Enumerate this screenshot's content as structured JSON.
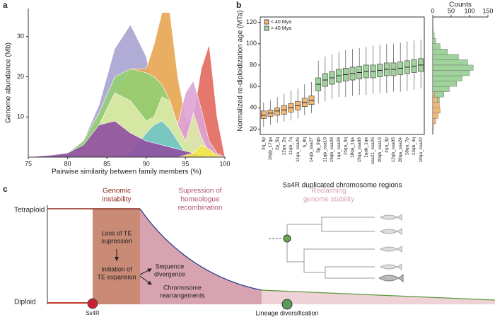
{
  "chart_data": [
    {
      "type": "area",
      "panel": "a",
      "xlabel": "Pairwise similarity between family members (%)",
      "ylabel": "Genome abundance (Mb)",
      "xlim": [
        75,
        100
      ],
      "xticks": [
        75,
        80,
        85,
        90,
        95,
        100
      ],
      "ylim": [
        0,
        37
      ],
      "yticks": [
        10,
        20,
        30
      ],
      "x": [
        75,
        78,
        80,
        82,
        84,
        86,
        88,
        90,
        91,
        92,
        93,
        94,
        95,
        96,
        97,
        98,
        99,
        100
      ],
      "series": [
        {
          "color": "#a7a3d2",
          "values": [
            0,
            0.3,
            1,
            4,
            13,
            27,
            33,
            25,
            16,
            10,
            7,
            5,
            4,
            3,
            2,
            1,
            0.3,
            0
          ]
        },
        {
          "color": "#e8a552",
          "values": [
            0,
            0,
            0.5,
            2,
            8,
            16,
            22,
            22,
            28,
            36,
            36,
            20,
            10,
            6,
            5,
            3,
            1,
            0
          ]
        },
        {
          "color": "#e2685c",
          "values": [
            0,
            0,
            0,
            0,
            0,
            0,
            0.5,
            1,
            2,
            4,
            4,
            4,
            8,
            10,
            22,
            28,
            10,
            0
          ]
        },
        {
          "color": "#dea3d6",
          "values": [
            0,
            0,
            0,
            0,
            0,
            0,
            0,
            0,
            0,
            1,
            3,
            8,
            16,
            19,
            12,
            4,
            1,
            0
          ]
        },
        {
          "color": "#93cf72",
          "values": [
            0,
            0,
            1,
            4,
            11,
            20,
            22,
            21,
            20,
            18,
            14,
            8,
            4,
            2,
            1,
            0,
            0,
            0
          ]
        },
        {
          "color": "#dde9a8",
          "values": [
            0,
            0,
            0.5,
            2,
            8,
            16,
            14,
            9,
            10,
            15,
            14,
            8,
            4,
            11,
            5,
            1,
            0,
            0
          ]
        },
        {
          "color": "#6fc3c4",
          "values": [
            0,
            0,
            0,
            0,
            0,
            0,
            1,
            6,
            8,
            9,
            7,
            4,
            1,
            0,
            0,
            0,
            0,
            0
          ]
        },
        {
          "color": "#8f4fa0",
          "values": [
            0,
            0.5,
            1,
            3,
            8,
            9,
            6,
            4,
            3.5,
            3,
            2.5,
            2,
            1.5,
            1,
            0.5,
            0,
            0,
            0
          ]
        },
        {
          "color": "#f3e54a",
          "values": [
            0,
            0,
            0,
            0,
            0,
            0,
            0,
            0,
            0,
            0,
            0,
            0,
            0.5,
            1,
            3,
            2,
            0.5,
            0
          ]
        }
      ]
    },
    {
      "type": "box",
      "panel": "b",
      "xlabel": "Ss4R duplicated chromosome regions",
      "ylabel": "Normalized re-diploidization age (MTa)",
      "ylim": [
        15,
        125
      ],
      "yticks": [
        20,
        40,
        60,
        80,
        100,
        120
      ],
      "series": [
        {
          "name": "< 40 Mya",
          "color": "#f2b777",
          "categories": [
            "3q_6p",
            "16qb_17qa",
            "2p_5q",
            "12qa_2q",
            "11qb_7q",
            "11qa_ssa26",
            "6_8q",
            "14qb_ssa27"
          ],
          "min": [
            22,
            24,
            26,
            27,
            28,
            30,
            33,
            35
          ],
          "q1": [
            30,
            32,
            33,
            34,
            36,
            38,
            41,
            43
          ],
          "median": [
            33,
            35,
            37,
            38,
            40,
            42,
            45,
            47
          ],
          "q3": [
            37,
            38,
            40,
            42,
            44,
            46,
            49,
            51
          ],
          "max": [
            45,
            47,
            50,
            53,
            56,
            58,
            62,
            64
          ]
        },
        {
          "name": "> 40 Mya",
          "color": "#9fd39b",
          "categories": [
            "5p_9qb",
            "11qb_ssa10",
            "19qb_ssa28",
            "1qa_ssa28",
            "15qa_6q",
            "18qa_1qa",
            "19qa_ssa09",
            "1qab_1qa",
            "ssa21_ssa25",
            "20qb_ssa19",
            "4qa_3p",
            "12qb_ssa05",
            "20qa_ssa24",
            "18qa_7p",
            "13qb_4q",
            "10qa_ssa22"
          ],
          "min": [
            44,
            46,
            48,
            50,
            50,
            51,
            52,
            52,
            53,
            54,
            54,
            55,
            55,
            56,
            57,
            58
          ],
          "q1": [
            56,
            60,
            62,
            64,
            65,
            66,
            67,
            68,
            68,
            69,
            70,
            70,
            71,
            72,
            73,
            74
          ],
          "median": [
            62,
            66,
            68,
            70,
            71,
            72,
            73,
            74,
            74,
            75,
            76,
            76,
            77,
            78,
            79,
            80
          ],
          "q3": [
            68,
            72,
            74,
            76,
            77,
            78,
            79,
            80,
            80,
            81,
            82,
            82,
            83,
            84,
            85,
            86
          ],
          "max": [
            84,
            88,
            90,
            92,
            94,
            95,
            96,
            97,
            98,
            99,
            100,
            100,
            101,
            102,
            103,
            104
          ]
        }
      ]
    },
    {
      "type": "histogram",
      "xlabel": "Counts",
      "xlim": [
        0,
        150
      ],
      "xticks": [
        0,
        50,
        100,
        150
      ],
      "bins": [
        20,
        25,
        30,
        35,
        40,
        45,
        50,
        55,
        60,
        65,
        70,
        75,
        80,
        85,
        90,
        95,
        100,
        105,
        110,
        115,
        120,
        125
      ],
      "series": [
        {
          "color": "#9fd39b",
          "values": [
            0,
            0,
            2,
            5,
            10,
            18,
            30,
            45,
            65,
            80,
            100,
            110,
            95,
            70,
            40,
            20,
            8,
            4,
            2,
            1,
            1
          ]
        },
        {
          "color": "#f2b777",
          "values": [
            2,
            8,
            15,
            20,
            18,
            12,
            5,
            0,
            0,
            0,
            0,
            0,
            0,
            0,
            0,
            0,
            0,
            0,
            0,
            0,
            0
          ]
        }
      ]
    }
  ],
  "diagram": {
    "panel": "c",
    "tetraploid": "Tetraploid",
    "diploid": "Diploid",
    "genomic_instability": [
      "Genomic",
      "instability"
    ],
    "supression": [
      "Supression of",
      "homeologue",
      "recombination"
    ],
    "reclaiming": [
      "Reclaiming",
      "genome stability"
    ],
    "loss_te": [
      "Loss of TE",
      "supression"
    ],
    "initiation_te": [
      "Initiation of",
      "TE expansion"
    ],
    "sequence_divergence": [
      "Sequence",
      "divergence"
    ],
    "chromosome_rearrangements": [
      "Chromosome",
      "rearrangements"
    ],
    "ss4r": "Ss4R",
    "lineage": "Lineage diversification"
  }
}
